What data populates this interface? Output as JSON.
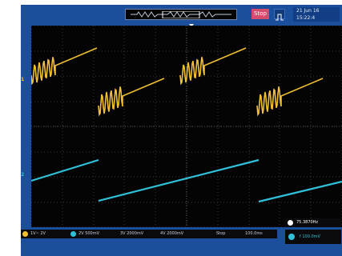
{
  "toolbar": {
    "run_state": "Stop",
    "date_line1": "21 Jun 16",
    "date_line2": "15:22:4"
  },
  "channels": {
    "ch1_marker": "1",
    "ch2_marker": "2",
    "ch1_scale": "1V~ 2V",
    "ch2_scale": "2V 500mV",
    "ch3_scale": "3V 2000mV",
    "ch4_scale": "4V 2000mV"
  },
  "measure": {
    "frequency": "75.3870Hz",
    "time_label": "Stop",
    "time_value": "100.0ms",
    "timebase": "f 100.0mV"
  },
  "colors": {
    "ch1": "#f0c030",
    "ch2": "#30c0d8",
    "frame": "#1b4f9c",
    "screen": "#040405"
  }
}
